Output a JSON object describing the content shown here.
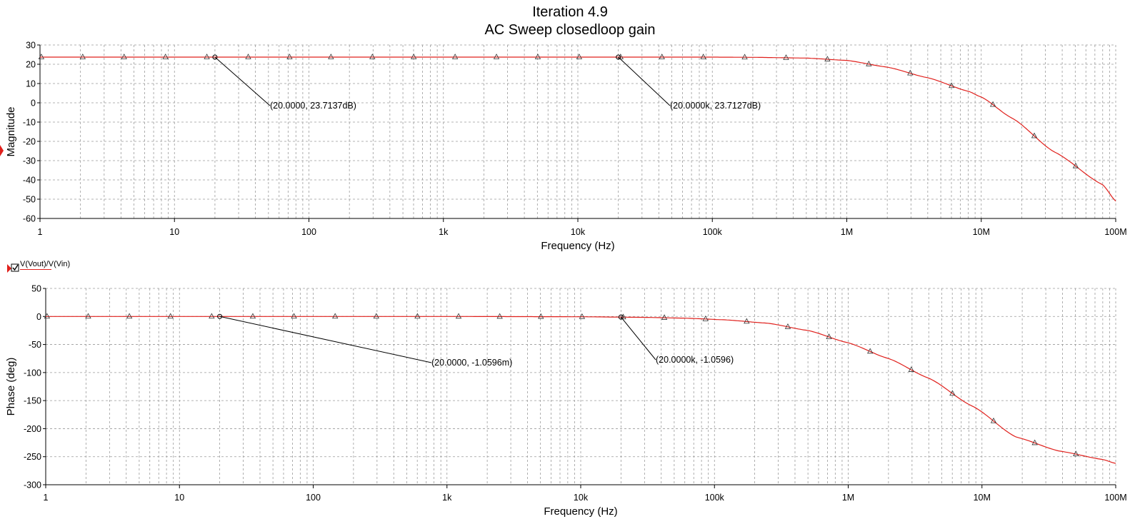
{
  "title": "Iteration 4.9",
  "subtitle": "AC Sweep closedloop gain",
  "colors": {
    "trace": "#e0201c",
    "grid": "#9a9a9a",
    "axis": "#000000",
    "legend_marker": "#e0201c"
  },
  "legend": {
    "label": "V(Vout)/V(Vin)",
    "checked": true
  },
  "x_ticks": [
    {
      "value": 1,
      "label": "1"
    },
    {
      "value": 10,
      "label": "10"
    },
    {
      "value": 100,
      "label": "100"
    },
    {
      "value": 1000,
      "label": "1k"
    },
    {
      "value": 10000,
      "label": "10k"
    },
    {
      "value": 100000,
      "label": "100k"
    },
    {
      "value": 1000000,
      "label": "1M"
    },
    {
      "value": 10000000,
      "label": "10M"
    },
    {
      "value": 100000000,
      "label": "100M"
    }
  ],
  "chart_data": [
    {
      "type": "line",
      "xlabel": "Frequency (Hz)",
      "ylabel": "Magnitude",
      "xscale": "log",
      "xlim": [
        1,
        100000000
      ],
      "ylim": [
        -60,
        30
      ],
      "yticks": [
        30,
        20,
        10,
        0,
        -10,
        -20,
        -30,
        -40,
        -50,
        -60
      ],
      "grid": true,
      "series": [
        {
          "name": "V(Vout)/V(Vin)",
          "x": [
            1,
            10,
            100,
            1000,
            10000,
            100000,
            200000,
            500000,
            1000000,
            2000000,
            4000000,
            8000000,
            10000000,
            17000000,
            35000000,
            80000000,
            100000000
          ],
          "y": [
            23.71,
            23.71,
            23.71,
            23.71,
            23.71,
            23.7,
            23.6,
            23.2,
            22.0,
            18.5,
            13.0,
            6.0,
            3.0,
            -8.0,
            -25.5,
            -42.5,
            -51.0
          ]
        }
      ],
      "annotations": [
        {
          "x": 20,
          "y": 23.7137,
          "text": "(20.0000, 23.7137dB)"
        },
        {
          "x": 20000,
          "y": 23.7127,
          "text": "(20.0000k, 23.7127dB)"
        }
      ]
    },
    {
      "type": "line",
      "xlabel": "Frequency (Hz)",
      "ylabel": "Phase (deg)",
      "xscale": "log",
      "xlim": [
        1,
        100000000
      ],
      "ylim": [
        -300,
        50
      ],
      "yticks": [
        50,
        0,
        -50,
        -100,
        -150,
        -200,
        -250,
        -300
      ],
      "grid": true,
      "series": [
        {
          "name": "V(Vout)/V(Vin)",
          "x": [
            1,
            10,
            100,
            1000,
            10000,
            30000,
            60000,
            120000,
            250000,
            500000,
            1000000,
            2000000,
            4000000,
            8500000,
            18000000,
            38000000,
            80000000,
            100000000
          ],
          "y": [
            0,
            0,
            0,
            0,
            -0.5,
            -1.6,
            -3,
            -6,
            -12,
            -25,
            -47,
            -75,
            -110,
            -160,
            -215,
            -240,
            -255,
            -262
          ]
        }
      ],
      "annotations": [
        {
          "x": 20,
          "y": -0.0010596,
          "text": "(20.0000, -1.0596m)"
        },
        {
          "x": 20000,
          "y": -1.0596,
          "text": "(20.0000k, -1.0596)"
        }
      ]
    }
  ]
}
